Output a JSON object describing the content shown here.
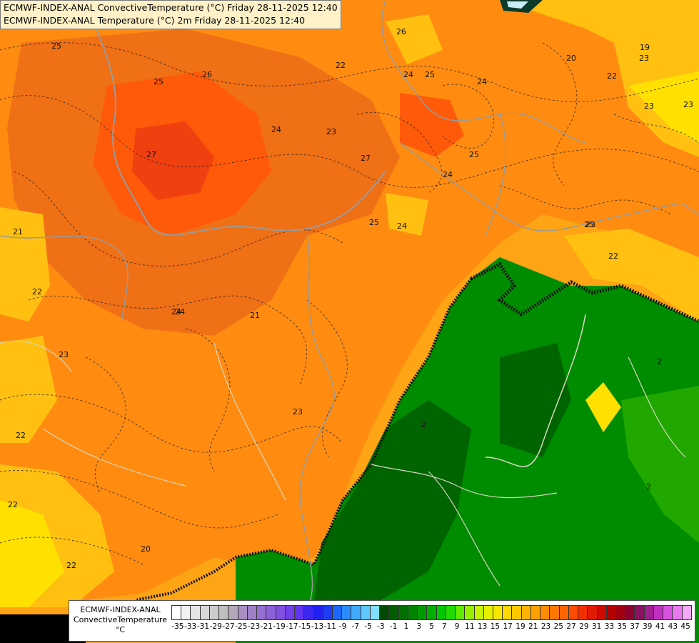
{
  "titles": {
    "line1": "ECMWF-INDEX-ANAL ConvectiveTemperature (°C) Friday 28-11-2025 12:40",
    "line2": "ECMWF-INDEX-ANAL Temperature (°C) 2m Friday 28-11-2025 12:40"
  },
  "legend": {
    "name": "ECMWF-INDEX-ANAL",
    "variable": "ConvectiveTemperature",
    "unit": "°C",
    "tick_labels": [
      "-35",
      "-33",
      "-31",
      "-29",
      "-27",
      "-25",
      "-23",
      "-21",
      "-19",
      "-17",
      "-15",
      "-13",
      "-11",
      "-9",
      "-7",
      "-5",
      "-3",
      "-1",
      "1",
      "3",
      "5",
      "7",
      "9",
      "11",
      "13",
      "15",
      "17",
      "19",
      "21",
      "23",
      "25",
      "27",
      "29",
      "31",
      "33",
      "35",
      "37",
      "39",
      "41",
      "43",
      "45"
    ],
    "colors": [
      "#ffffff",
      "#f2f2f2",
      "#e6e6e6",
      "#d9d9d9",
      "#cccccc",
      "#bfbfbf",
      "#b3a8b8",
      "#a88fbf",
      "#9d80c8",
      "#9470d0",
      "#8c60d8",
      "#8050e0",
      "#7040e8",
      "#6034f0",
      "#3a28f0",
      "#1f22f2",
      "#1e3cf4",
      "#1e66f8",
      "#2a8cfa",
      "#40aafc",
      "#60c8fe",
      "#80e0ff",
      "#004a00",
      "#005c00",
      "#007000",
      "#008400",
      "#009a00",
      "#00b000",
      "#00c800",
      "#20dc00",
      "#60ea00",
      "#98f000",
      "#c8f400",
      "#e6f000",
      "#f8e800",
      "#ffd800",
      "#ffc800",
      "#ffb400",
      "#ffa000",
      "#ff8c00",
      "#ff7800",
      "#ff6400",
      "#ff4c00",
      "#f03000",
      "#e01c00",
      "#cc0c00",
      "#b40000",
      "#a00010",
      "#8c0030",
      "#8c1060",
      "#a02090",
      "#c030c0",
      "#d850e0",
      "#e878f0",
      "#f4a8fa"
    ]
  },
  "map": {
    "contour_labels": [
      "25",
      "25",
      "26",
      "27",
      "24",
      "24",
      "22",
      "23",
      "24",
      "25",
      "27",
      "21",
      "22",
      "22",
      "24",
      "23",
      "22",
      "23",
      "24",
      "23",
      "25",
      "26",
      "24",
      "25",
      "21",
      "23",
      "22",
      "23",
      "22",
      "20",
      "19",
      "20",
      "22",
      "23",
      "25",
      "24",
      "2",
      "2",
      "2"
    ],
    "colors": {
      "warm_dark": "#f07016",
      "warm": "#ff8c10",
      "hot": "#ff5a0a",
      "hottest": "#f04010",
      "orange_mid": "#ffa414",
      "amber": "#ffc012",
      "yellow": "#ffe000",
      "green_dark": "#006400",
      "green": "#008c00",
      "green_light": "#20a800",
      "border": "#d8d8c0",
      "coast": "#9a9a9a"
    }
  }
}
